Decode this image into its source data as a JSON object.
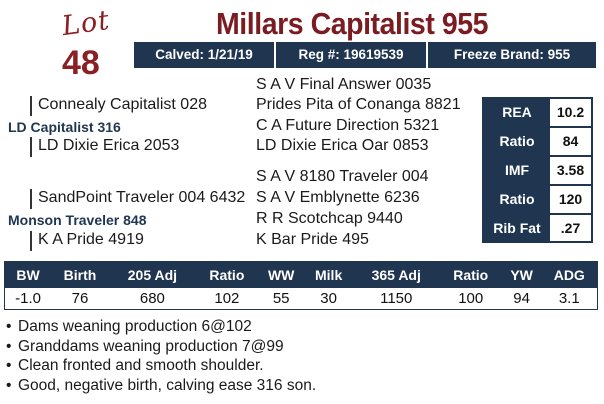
{
  "lot": {
    "word": "Lot",
    "number": "48"
  },
  "title": "Millars Capitalist 955",
  "info_bar": {
    "calved": "Calved: 1/21/19",
    "reg": "Reg #: 19619539",
    "freeze_brand": "Freeze Brand: 955"
  },
  "pedigree": {
    "sire": "LD Capitalist 316",
    "sire_sire": "Connealy Capitalist 028",
    "sire_dam": "LD Dixie Erica 2053",
    "sire_sire_sire": "S A V Final Answer 0035",
    "sire_sire_dam": "Prides Pita of Conanga 8821",
    "sire_dam_sire": "C A Future Direction 5321",
    "sire_dam_dam": "LD Dixie Erica Oar 0853",
    "dam_sire": "Monson Traveler 848",
    "dam_sire_sire": "SandPoint Traveler 004 6432",
    "dam_dam": "K A Pride 4919",
    "dam_sire_sire_sire": "S A V 8180 Traveler 004",
    "dam_sire_sire_dam": "S A V Emblynette 6236",
    "dam_dam_sire": "R R Scotchcap 9440",
    "dam_dam_dam": "K Bar Pride 495"
  },
  "carcass": [
    {
      "label": "REA",
      "value": "10.2"
    },
    {
      "label": "Ratio",
      "value": "84"
    },
    {
      "label": "IMF",
      "value": "3.58"
    },
    {
      "label": "Ratio",
      "value": "120"
    },
    {
      "label": "Rib Fat",
      "value": ".27"
    }
  ],
  "performance": {
    "headers": [
      "BW",
      "Birth",
      "205 Adj",
      "Ratio",
      "WW",
      "Milk",
      "365 Adj",
      "Ratio",
      "YW",
      "ADG"
    ],
    "values": [
      "-1.0",
      "76",
      "680",
      "102",
      "55",
      "30",
      "1150",
      "100",
      "94",
      "3.1"
    ]
  },
  "notes": [
    "Dams weaning production 6@102",
    "Granddams weaning production 7@99",
    "Clean fronted and smooth shoulder.",
    "Good, negative birth, calving ease 316 son."
  ],
  "colors": {
    "navy": "#1f3550",
    "maroon": "#7a1c22"
  }
}
